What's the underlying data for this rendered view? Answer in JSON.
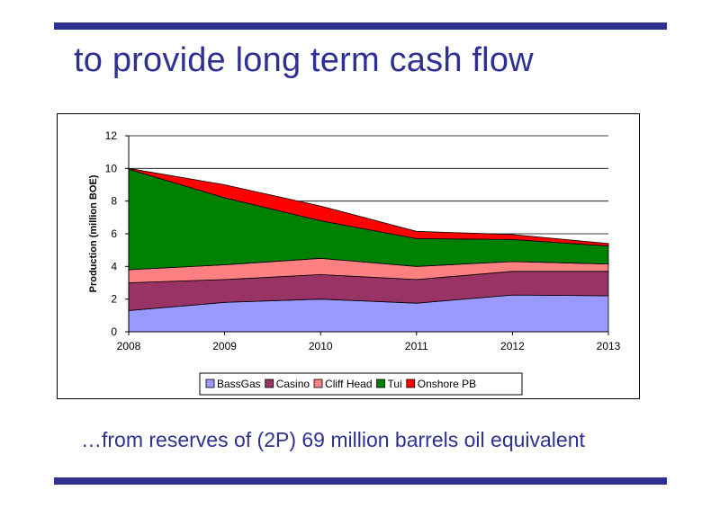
{
  "slide": {
    "title": "to provide long term cash flow",
    "footer": "…from reserves of (2P) 69 million barrels oil equivalent"
  },
  "colors": {
    "accent": "#2e3192"
  },
  "chart_data": {
    "type": "area",
    "stacked": true,
    "x": [
      "2008",
      "2009",
      "2010",
      "2011",
      "2012",
      "2013"
    ],
    "ylabel": "Production (million BOE)",
    "xlabel": "",
    "ylim": [
      0,
      12
    ],
    "yticks": [
      0,
      2,
      4,
      6,
      8,
      10,
      12
    ],
    "grid": "horizontal",
    "legend_position": "bottom",
    "series": [
      {
        "name": "BassGas",
        "color": "#9999ff",
        "values": [
          1.3,
          1.8,
          2.0,
          1.75,
          2.25,
          2.2
        ]
      },
      {
        "name": "Casino",
        "color": "#993366",
        "values": [
          1.7,
          1.4,
          1.5,
          1.45,
          1.45,
          1.5
        ]
      },
      {
        "name": "Cliff Head",
        "color": "#ff8080",
        "values": [
          0.8,
          0.9,
          1.0,
          0.8,
          0.6,
          0.45
        ]
      },
      {
        "name": "Tui",
        "color": "#008000",
        "values": [
          6.15,
          4.1,
          2.3,
          1.7,
          1.35,
          1.1
        ]
      },
      {
        "name": "Onshore PB",
        "color": "#ff0000",
        "values": [
          0.05,
          0.8,
          0.9,
          0.45,
          0.3,
          0.15
        ]
      }
    ]
  }
}
